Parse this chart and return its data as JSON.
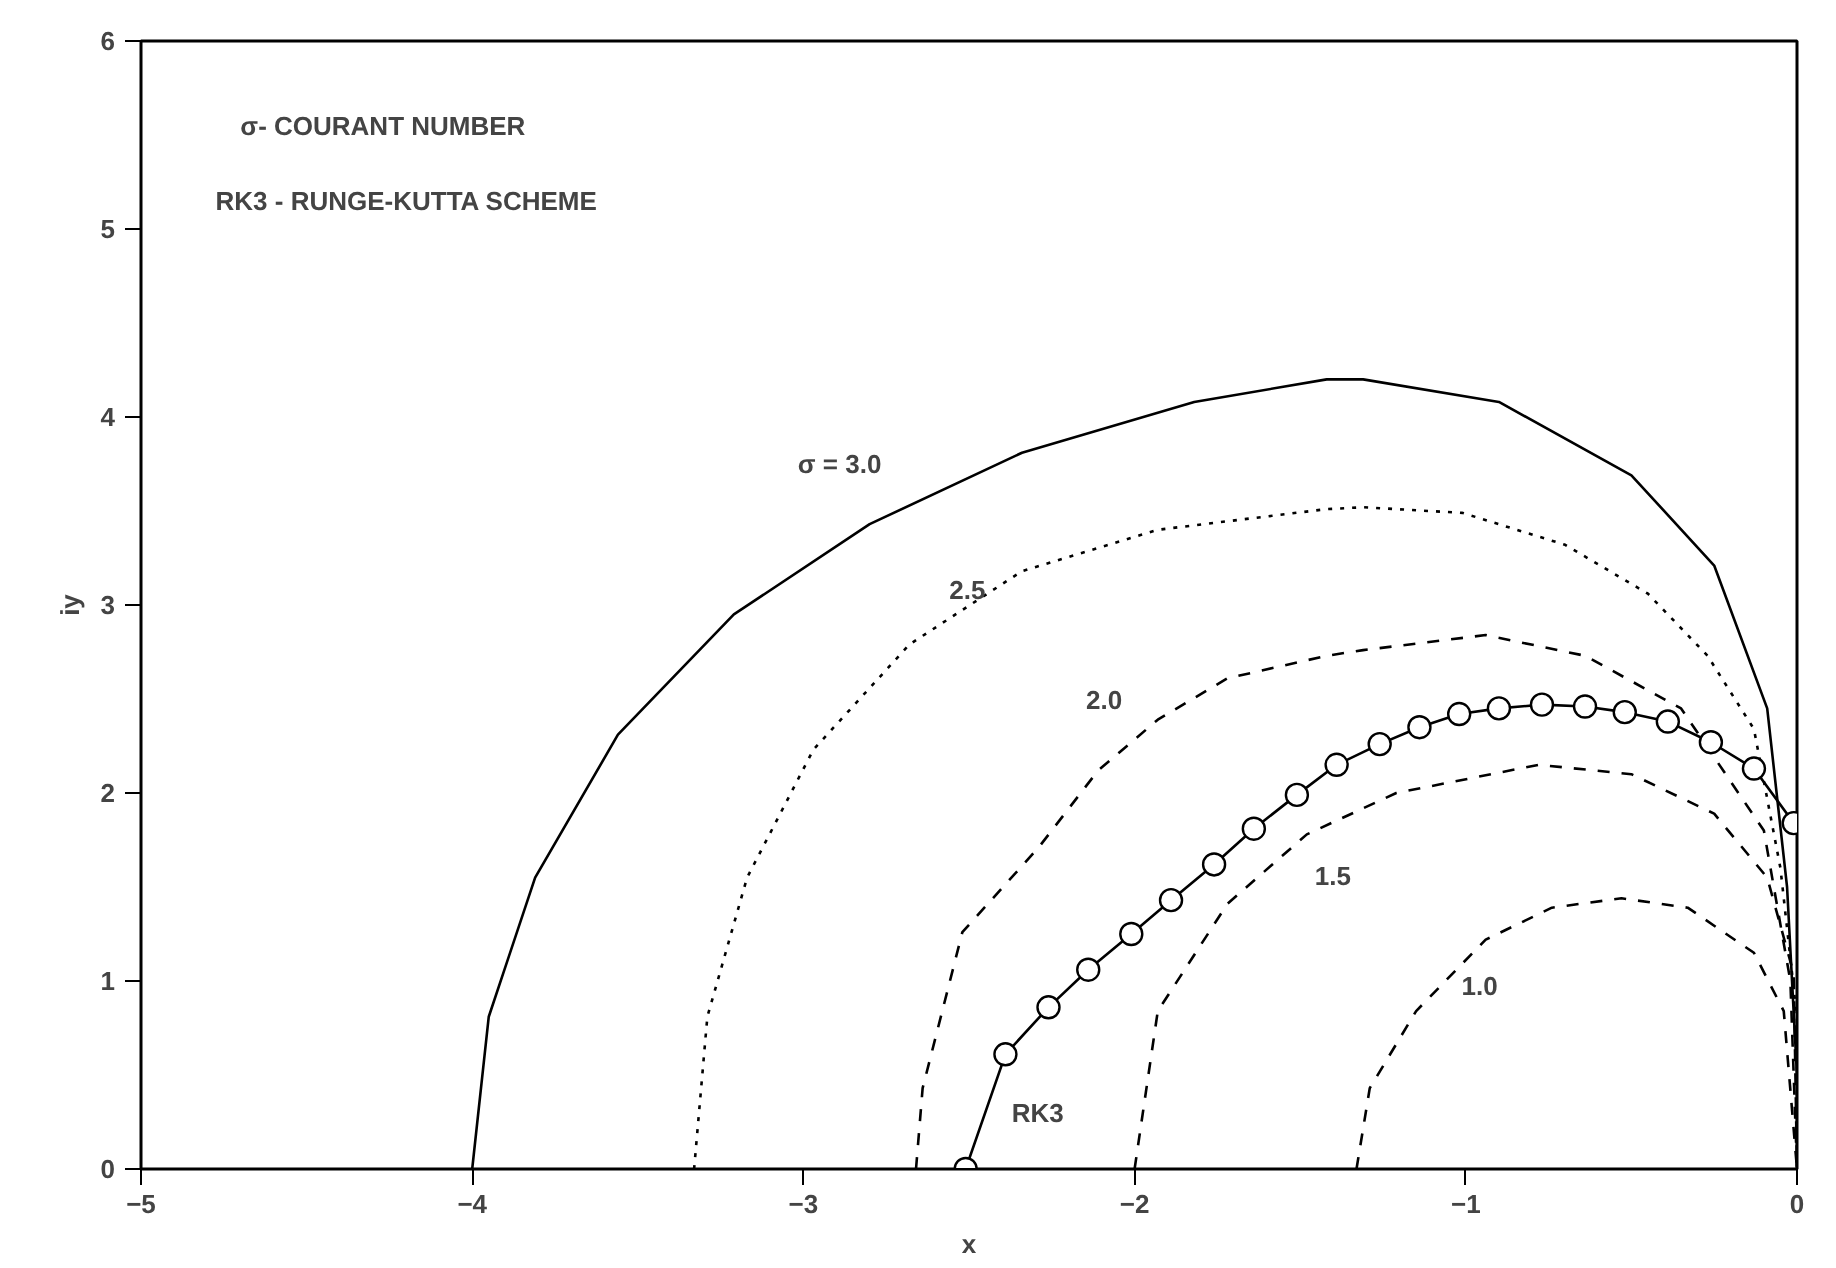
{
  "chart_data": {
    "type": "line",
    "xlabel": "x",
    "ylabel": "iy",
    "xlim": [
      -5,
      0
    ],
    "ylim": [
      0,
      6
    ],
    "xticks": [
      -5,
      -4,
      -3,
      -2,
      -1,
      0
    ],
    "yticks": [
      0,
      1,
      2,
      3,
      4,
      5,
      6
    ],
    "grid": false,
    "legend": false,
    "series": [
      {
        "name": "σ = 3.0",
        "color": "#000000",
        "line_style": "solid",
        "marker": "none",
        "x": [
          -4,
          -3.95,
          -3.81,
          -3.56,
          -3.21,
          -2.8,
          -2.34,
          -1.82,
          -1.42,
          -1.31,
          -0.9,
          -0.5,
          -0.25,
          -0.09,
          -0.03,
          0,
          0
        ],
        "values": [
          0,
          0.81,
          1.55,
          2.31,
          2.95,
          3.43,
          3.81,
          4.08,
          4.2,
          4.2,
          4.08,
          3.69,
          3.21,
          2.45,
          1.5,
          0.5,
          0
        ]
      },
      {
        "name": "2.5",
        "color": "#000000",
        "line_style": "dotted",
        "marker": "none",
        "x": [
          -3.33,
          -3.29,
          -3.17,
          -2.97,
          -2.68,
          -2.34,
          -1.93,
          -1.42,
          -1.31,
          -1.01,
          -0.7,
          -0.45,
          -0.27,
          -0.13,
          -0.05,
          0,
          0
        ],
        "values": [
          0,
          0.81,
          1.55,
          2.23,
          2.79,
          3.18,
          3.4,
          3.51,
          3.52,
          3.49,
          3.32,
          3.06,
          2.73,
          2.34,
          1.6,
          0.8,
          0
        ]
      },
      {
        "name": "2.0",
        "color": "#000000",
        "line_style": "dashed",
        "marker": "none",
        "x": [
          -2.66,
          -2.64,
          -2.52,
          -2.29,
          -2.11,
          -1.93,
          -1.72,
          -1.42,
          -1.31,
          -0.94,
          -0.64,
          -0.35,
          -0.1,
          -0.02,
          0
        ],
        "values": [
          0,
          0.43,
          1.26,
          1.71,
          2.12,
          2.39,
          2.61,
          2.73,
          2.76,
          2.84,
          2.73,
          2.45,
          1.8,
          1.0,
          0
        ]
      },
      {
        "name": "1.5",
        "color": "#000000",
        "line_style": "dashed",
        "marker": "none",
        "x": [
          -2.0,
          -1.93,
          -1.72,
          -1.48,
          -1.21,
          -0.78,
          -0.5,
          -0.25,
          -0.09,
          -0.01,
          0
        ],
        "values": [
          0,
          0.84,
          1.41,
          1.78,
          2.0,
          2.15,
          2.1,
          1.89,
          1.55,
          1.04,
          0
        ]
      },
      {
        "name": "1.0",
        "color": "#000000",
        "line_style": "dashed",
        "marker": "none",
        "x": [
          -1.33,
          -1.29,
          -1.15,
          -0.94,
          -0.74,
          -0.53,
          -0.33,
          -0.13,
          -0.04,
          0
        ],
        "values": [
          0,
          0.43,
          0.84,
          1.22,
          1.39,
          1.44,
          1.39,
          1.15,
          0.84,
          0
        ]
      },
      {
        "name": "RK3",
        "color": "#000000",
        "line_style": "solid",
        "marker": "circle",
        "x": [
          -2.51,
          -2.39,
          -2.26,
          -2.14,
          -2.01,
          -1.89,
          -1.76,
          -1.64,
          -1.51,
          -1.39,
          -1.26,
          -1.14,
          -1.02,
          -0.9,
          -0.77,
          -0.64,
          -0.52,
          -0.39,
          -0.26,
          -0.13,
          -0.01
        ],
        "values": [
          0,
          0.61,
          0.86,
          1.06,
          1.25,
          1.43,
          1.62,
          1.81,
          1.99,
          2.15,
          2.26,
          2.35,
          2.42,
          2.45,
          2.47,
          2.46,
          2.43,
          2.38,
          2.27,
          2.13,
          1.84
        ]
      }
    ],
    "annotations": [
      "σ- COURANT NUMBER",
      "RK3 - RUNGE-KUTTA SCHEME"
    ]
  }
}
